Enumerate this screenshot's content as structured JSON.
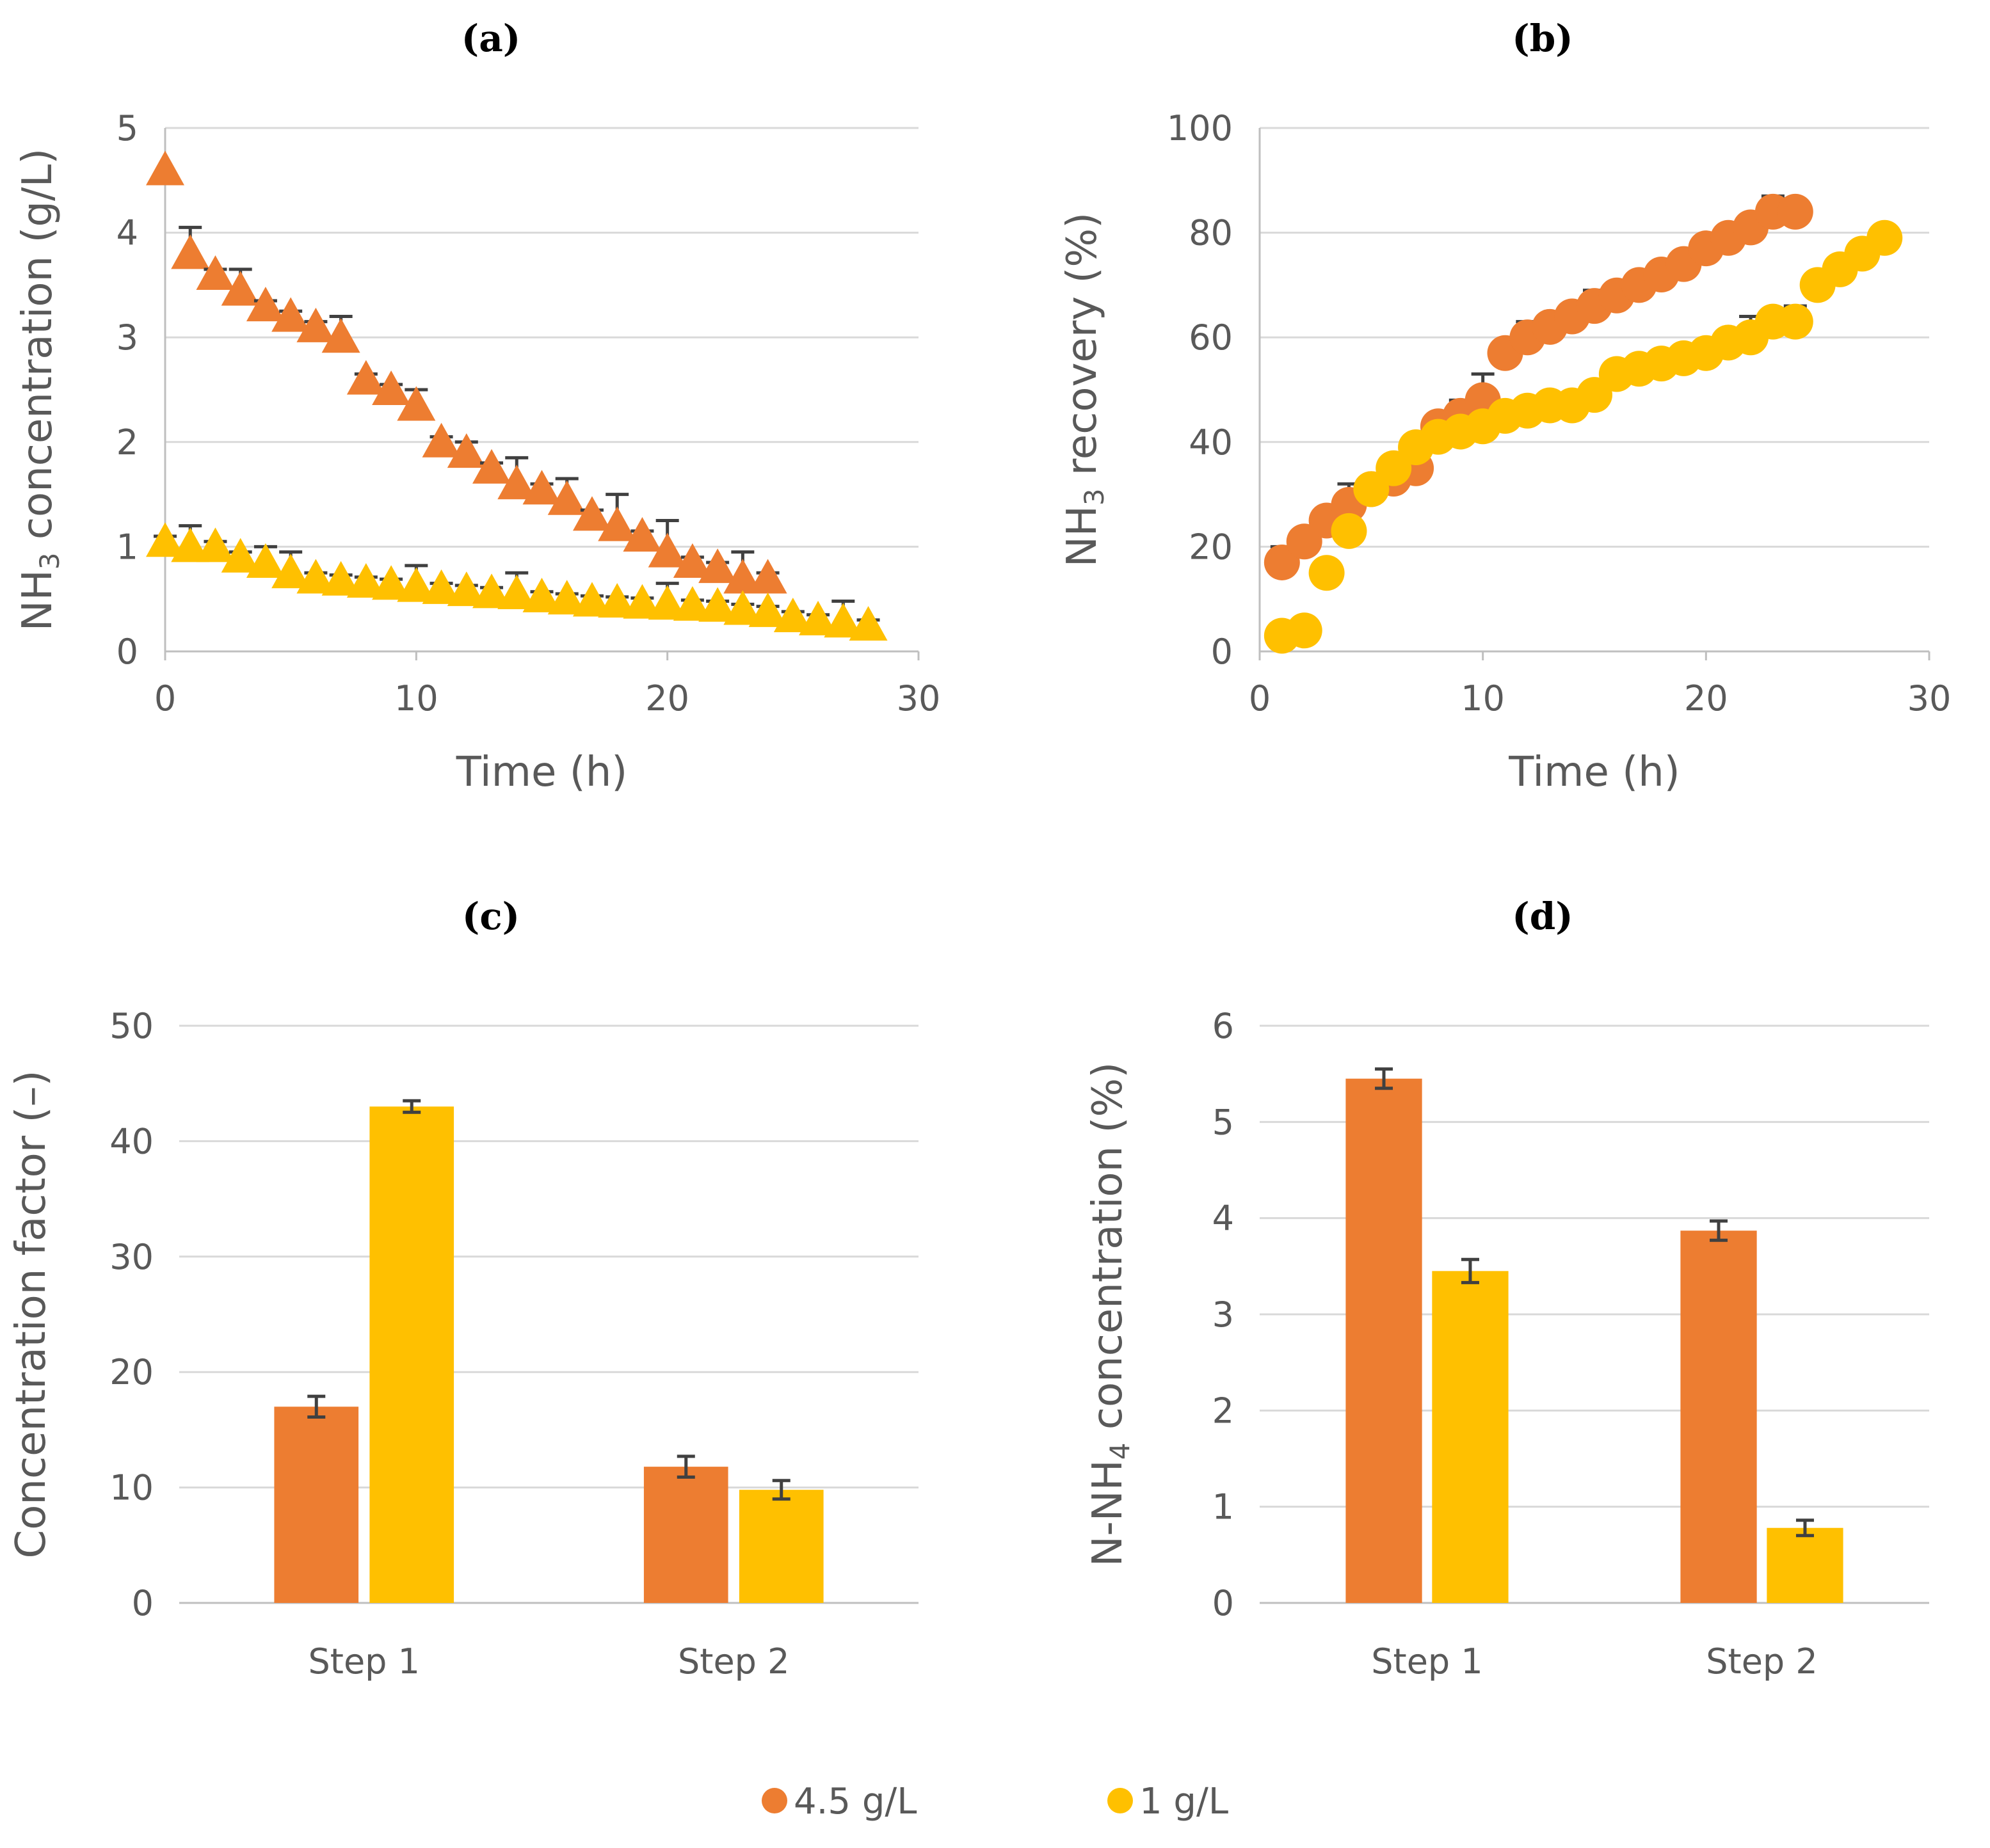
{
  "colors": {
    "s1": "#ED7D31",
    "s2": "#FFC000"
  },
  "legend": [
    {
      "label": "4.5 g/L",
      "color": "#ED7D31"
    },
    {
      "label": "1 g/L",
      "color": "#FFC000"
    }
  ],
  "chart_data": [
    {
      "id": "a",
      "type": "scatter",
      "title": "(a)",
      "xlabel": "Time (h)",
      "ylabel_parts": [
        "NH",
        "3",
        " concentration (g/L)"
      ],
      "xlim": [
        0,
        30
      ],
      "ylim": [
        0,
        5
      ],
      "xticks": [
        0,
        10,
        20,
        30
      ],
      "yticks": [
        0,
        1,
        2,
        3,
        4,
        5
      ],
      "marker": "triangle",
      "series": [
        {
          "name": "4.5 g/L",
          "color": "#ED7D31",
          "x": [
            0,
            1,
            2,
            3,
            4,
            5,
            6,
            7,
            8,
            9,
            10,
            11,
            12,
            13,
            14,
            15,
            16,
            17,
            18,
            19,
            20,
            21,
            22,
            23,
            24
          ],
          "y": [
            4.6,
            3.8,
            3.6,
            3.45,
            3.3,
            3.2,
            3.1,
            3.0,
            2.6,
            2.5,
            2.35,
            2.0,
            1.9,
            1.75,
            1.6,
            1.55,
            1.45,
            1.3,
            1.2,
            1.1,
            0.95,
            0.85,
            0.8,
            0.7,
            0.7
          ],
          "err": [
            0,
            0.25,
            0.05,
            0.2,
            0.05,
            0.05,
            0.05,
            0.2,
            0.05,
            0.05,
            0.15,
            0.05,
            0.1,
            0.05,
            0.25,
            0.05,
            0.2,
            0.05,
            0.3,
            0.05,
            0.3,
            0.05,
            0.05,
            0.25,
            0.05
          ]
        },
        {
          "name": "1 g/L",
          "color": "#FFC000",
          "x": [
            0,
            1,
            2,
            3,
            4,
            5,
            6,
            7,
            8,
            9,
            10,
            11,
            12,
            13,
            14,
            15,
            16,
            17,
            18,
            19,
            20,
            21,
            22,
            23,
            24,
            25,
            26,
            27,
            28
          ],
          "y": [
            1.05,
            1.0,
            1.0,
            0.9,
            0.85,
            0.75,
            0.7,
            0.68,
            0.66,
            0.64,
            0.62,
            0.6,
            0.58,
            0.56,
            0.55,
            0.52,
            0.5,
            0.48,
            0.47,
            0.46,
            0.45,
            0.44,
            0.43,
            0.4,
            0.38,
            0.33,
            0.3,
            0.28,
            0.25
          ],
          "err": [
            0.05,
            0.2,
            0.05,
            0.05,
            0.15,
            0.2,
            0.05,
            0.05,
            0.05,
            0.05,
            0.2,
            0.05,
            0.05,
            0.05,
            0.2,
            0.05,
            0.05,
            0.05,
            0.05,
            0.05,
            0.2,
            0.05,
            0.05,
            0.05,
            0.05,
            0.05,
            0.05,
            0.2,
            0.05
          ]
        }
      ]
    },
    {
      "id": "b",
      "type": "scatter",
      "title": "(b)",
      "xlabel": "Time (h)",
      "ylabel_parts": [
        "NH",
        "3",
        " recovery (%)"
      ],
      "xlim": [
        0,
        30
      ],
      "ylim": [
        0,
        100
      ],
      "xticks": [
        0,
        10,
        20,
        30
      ],
      "yticks": [
        0,
        20,
        40,
        60,
        80,
        100
      ],
      "marker": "circle",
      "series": [
        {
          "name": "4.5 g/L",
          "color": "#ED7D31",
          "x": [
            1,
            2,
            3,
            4,
            5,
            6,
            7,
            8,
            9,
            10,
            11,
            12,
            13,
            14,
            15,
            16,
            17,
            18,
            19,
            20,
            21,
            22,
            23,
            24
          ],
          "y": [
            17,
            21,
            25,
            28,
            31,
            33,
            35,
            43,
            45,
            48,
            57,
            60,
            62,
            64,
            66,
            68,
            70,
            72,
            74,
            77,
            79,
            81,
            84,
            84
          ],
          "err": [
            3,
            1,
            1,
            4,
            1,
            3,
            4,
            1,
            3,
            5,
            1,
            3,
            1,
            1,
            3,
            1,
            1,
            1,
            1,
            1,
            1,
            1,
            3,
            1
          ]
        },
        {
          "name": "1 g/L",
          "color": "#FFC000",
          "x": [
            1,
            2,
            3,
            4,
            5,
            6,
            7,
            8,
            9,
            10,
            11,
            12,
            13,
            14,
            15,
            16,
            17,
            18,
            19,
            20,
            21,
            22,
            23,
            24,
            25,
            26,
            27,
            28
          ],
          "y": [
            3,
            4,
            15,
            23,
            31,
            35,
            39,
            41,
            42,
            43,
            45,
            46,
            47,
            47,
            49,
            53,
            54,
            55,
            56,
            57,
            59,
            60,
            63,
            63,
            70,
            73,
            76,
            79
          ],
          "err": [
            1,
            1,
            1,
            1,
            1,
            1,
            1,
            1,
            1,
            1,
            1,
            1,
            1,
            1,
            1,
            1,
            1,
            1,
            1,
            1,
            1,
            4,
            1,
            3,
            1,
            1,
            1,
            1
          ]
        }
      ]
    },
    {
      "id": "c",
      "type": "bar",
      "title": "(c)",
      "ylabel": "Concentration factor (–)",
      "categories": [
        "Step 1",
        "Step 2"
      ],
      "ylim": [
        0,
        50
      ],
      "yticks": [
        0,
        10,
        20,
        30,
        40,
        50
      ],
      "series": [
        {
          "name": "4.5 g/L",
          "color": "#ED7D31",
          "values": [
            17,
            11.8
          ],
          "err": [
            0.9,
            0.9
          ]
        },
        {
          "name": "1 g/L",
          "color": "#FFC000",
          "values": [
            43,
            9.8
          ],
          "err": [
            0.5,
            0.8
          ]
        }
      ]
    },
    {
      "id": "d",
      "type": "bar",
      "title": "(d)",
      "ylabel_parts": [
        "N-NH",
        "4",
        " concentration (%)"
      ],
      "categories": [
        "Step 1",
        "Step 2"
      ],
      "ylim": [
        0,
        6
      ],
      "yticks": [
        0,
        1,
        2,
        3,
        4,
        5,
        6
      ],
      "series": [
        {
          "name": "4.5 g/L",
          "color": "#ED7D31",
          "values": [
            5.45,
            3.87
          ],
          "err": [
            0.1,
            0.1
          ]
        },
        {
          "name": "1 g/L",
          "color": "#FFC000",
          "values": [
            3.45,
            0.78
          ],
          "err": [
            0.12,
            0.08
          ]
        }
      ]
    }
  ]
}
